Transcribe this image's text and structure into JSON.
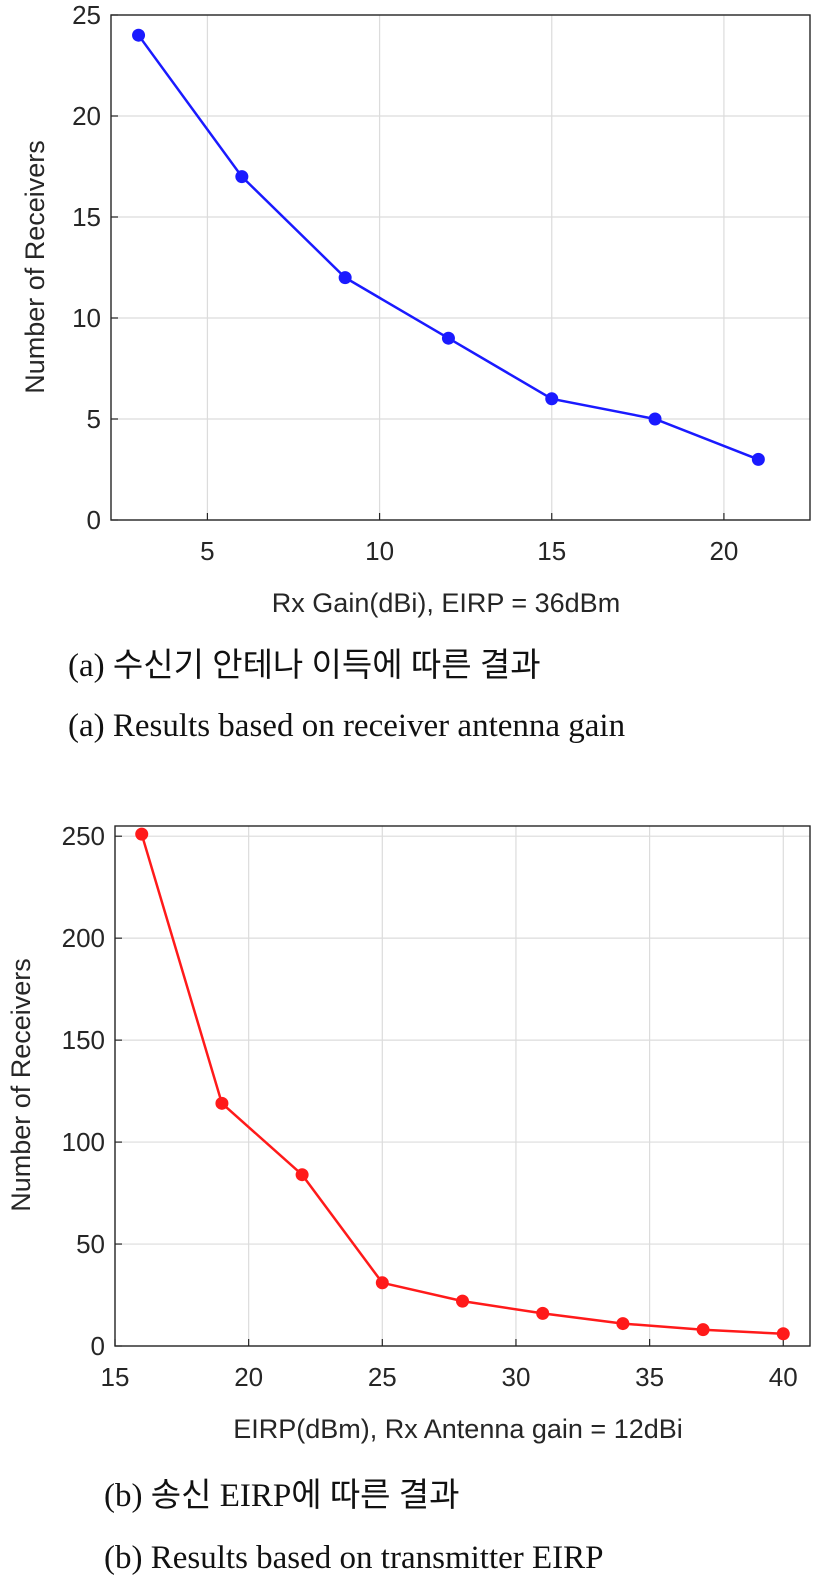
{
  "chart_data": [
    {
      "type": "line",
      "xlabel": "Rx Gain(dBi), EIRP = 36dBm",
      "ylabel": "Number of Receivers",
      "xlim": [
        2.2,
        22.5
      ],
      "ylim": [
        0,
        25
      ],
      "xticks": [
        5,
        10,
        15,
        20
      ],
      "yticks": [
        0,
        5,
        10,
        15,
        20,
        25
      ],
      "grid": true,
      "color": "#1a1aff",
      "series": [
        {
          "x": [
            3,
            6,
            9,
            12,
            15,
            18,
            21
          ],
          "y": [
            24,
            17,
            12,
            9,
            6,
            5,
            3
          ]
        }
      ],
      "captions": [
        "(a) 수신기 안테나 이득에 따른 결과",
        "(a) Results based on receiver antenna gain"
      ]
    },
    {
      "type": "line",
      "xlabel": "EIRP(dBm), Rx Antenna gain = 12dBi",
      "ylabel": "Number of Receivers",
      "xlim": [
        15,
        41
      ],
      "ylim": [
        0,
        255
      ],
      "xticks": [
        15,
        20,
        25,
        30,
        35,
        40
      ],
      "yticks": [
        0,
        50,
        100,
        150,
        200,
        250
      ],
      "grid": true,
      "color": "#ff1a1a",
      "series": [
        {
          "x": [
            16,
            19,
            22,
            25,
            28,
            31,
            34,
            37,
            40
          ],
          "y": [
            251,
            119,
            84,
            31,
            22,
            16,
            11,
            8,
            6
          ]
        }
      ],
      "captions": [
        "(b) 송신 EIRP에 따른 결과",
        "(b) Results based on transmitter EIRP"
      ]
    }
  ]
}
